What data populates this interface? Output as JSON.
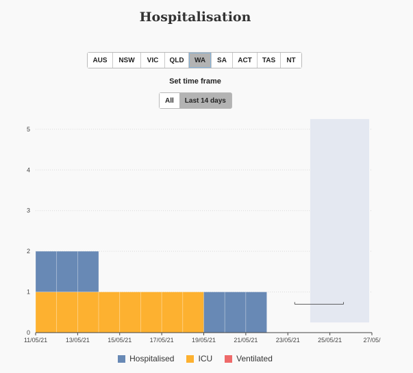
{
  "title": "Hospitalisation",
  "regions": {
    "items": [
      "AUS",
      "NSW",
      "VIC",
      "QLD",
      "WA",
      "SA",
      "ACT",
      "TAS",
      "NT"
    ],
    "selected": "WA"
  },
  "timeframe": {
    "label": "Set time frame",
    "all_label": "All",
    "last14_label": "Last 14 days",
    "selected": "Last 14 days"
  },
  "legend": {
    "hospitalised": "Hospitalised",
    "icu": "ICU",
    "ventilated": "Ventilated"
  },
  "colors": {
    "hospitalised": "#6889b5",
    "icu": "#fdb130",
    "ventilated": "#ee6a6a",
    "projection": "#e4e8f1"
  },
  "chart_data": {
    "type": "bar",
    "stacked": true,
    "ylim": [
      0,
      5.3
    ],
    "yticks": [
      0,
      1,
      2,
      3,
      4,
      5
    ],
    "xtick_labels": [
      "11/05/21",
      "13/05/21",
      "15/05/21",
      "17/05/21",
      "19/05/21",
      "21/05/21",
      "23/05/21",
      "25/05/21",
      "27/05/"
    ],
    "categories": [
      "11/05/21",
      "12/05/21",
      "13/05/21",
      "14/05/21",
      "15/05/21",
      "16/05/21",
      "17/05/21",
      "18/05/21",
      "19/05/21",
      "20/05/21",
      "21/05/21"
    ],
    "series": [
      {
        "name": "ICU",
        "key": "icu",
        "values": [
          1,
          1,
          1,
          1,
          1,
          1,
          1,
          1,
          0,
          0,
          0
        ]
      },
      {
        "name": "Hospitalised",
        "key": "hospitalised",
        "values": [
          1,
          1,
          1,
          0,
          0,
          0,
          0,
          0,
          1,
          1,
          1
        ]
      },
      {
        "name": "Ventilated",
        "key": "ventilated",
        "values": [
          0,
          0,
          0,
          0,
          0,
          0,
          0,
          0,
          0,
          0,
          0
        ]
      }
    ],
    "shaded_range": {
      "x": [
        "24/05/21",
        "27/05/21"
      ],
      "y": [
        0.25,
        5.25
      ]
    },
    "marker_line": {
      "x": [
        "23/05/21",
        "25/05/21"
      ],
      "y": 0.7
    },
    "grid": true,
    "legend_position": "bottom"
  }
}
